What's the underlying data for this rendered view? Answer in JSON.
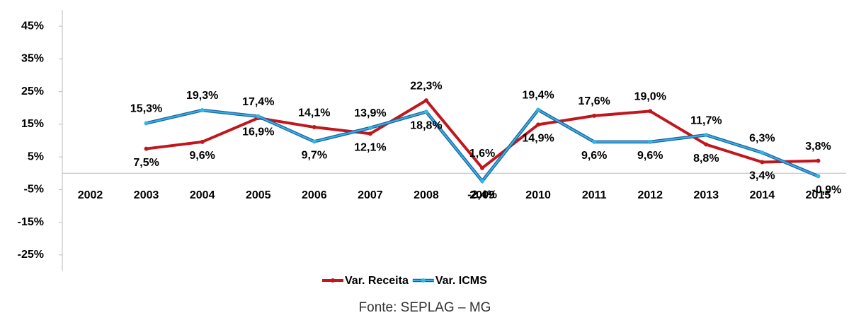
{
  "chart_data": {
    "type": "line",
    "categories": [
      "2002",
      "2003",
      "2004",
      "2005",
      "2006",
      "2007",
      "2008",
      "2009",
      "2010",
      "2011",
      "2012",
      "2013",
      "2014",
      "2015"
    ],
    "series": [
      {
        "name": "Var. Receita",
        "color": "#c0161c",
        "values": [
          null,
          7.5,
          9.6,
          16.9,
          14.1,
          12.1,
          22.3,
          1.6,
          14.9,
          17.6,
          19.0,
          8.8,
          3.4,
          3.8
        ],
        "value_labels": [
          null,
          "7,5%",
          "9,6%",
          "16,9%",
          "14,1%",
          "12,1%",
          "22,3%",
          "1,6%",
          "14,9%",
          "17,6%",
          "19,0%",
          "8,8%",
          "3,4%",
          "3,8%"
        ]
      },
      {
        "name": "Var. ICMS",
        "color": "#33b5e5",
        "values": [
          null,
          15.3,
          19.3,
          17.4,
          9.7,
          13.9,
          18.8,
          -2.4,
          19.4,
          9.6,
          9.6,
          11.7,
          6.3,
          -0.9
        ],
        "value_labels": [
          null,
          "15,3%",
          "19,3%",
          "17,4%",
          "9,7%",
          "13,9%",
          "18,8%",
          "-2,4%",
          "19,4%",
          "9,6%",
          "9,6%",
          "11,7%",
          "6,3%",
          "-0,9%"
        ]
      }
    ],
    "ylim": [
      -30,
      50
    ],
    "yticks": [
      {
        "value": -25,
        "label": "-25%"
      },
      {
        "value": -15,
        "label": "-15%"
      },
      {
        "value": -5,
        "label": "-5%"
      },
      {
        "value": 5,
        "label": "5%"
      },
      {
        "value": 15,
        "label": "15%"
      },
      {
        "value": 25,
        "label": "25%"
      },
      {
        "value": 35,
        "label": "35%"
      },
      {
        "value": 45,
        "label": "45%"
      }
    ],
    "source": "Fonte: SEPLAG – MG"
  }
}
